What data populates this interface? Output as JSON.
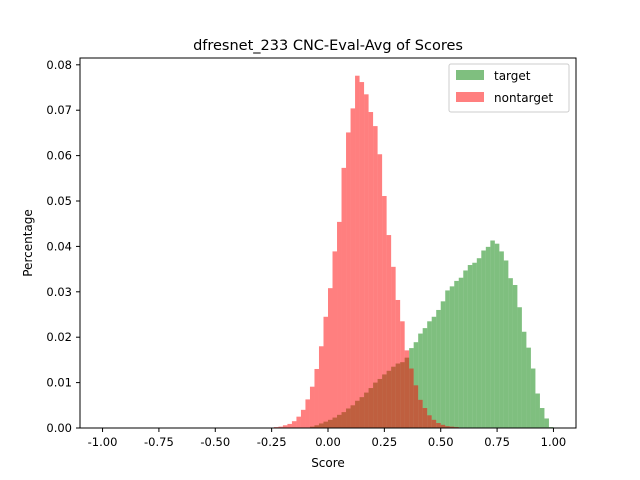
{
  "chart_data": {
    "type": "bar",
    "title": "dfresnet_233 CNC-Eval-Avg of Scores",
    "xlabel": "Score",
    "ylabel": "Percentage",
    "xlim": [
      -1.1,
      1.1
    ],
    "ylim": [
      0,
      0.0815
    ],
    "xticks": [
      "-1.00",
      "-0.75",
      "-0.50",
      "-0.25",
      "0.00",
      "0.25",
      "0.50",
      "0.75",
      "1.00"
    ],
    "xtick_values": [
      -1.0,
      -0.75,
      -0.5,
      -0.25,
      0.0,
      0.25,
      0.5,
      0.75,
      1.0
    ],
    "yticks": [
      "0.00",
      "0.01",
      "0.02",
      "0.03",
      "0.04",
      "0.05",
      "0.06",
      "0.07",
      "0.08"
    ],
    "ytick_values": [
      0.0,
      0.01,
      0.02,
      0.03,
      0.04,
      0.05,
      0.06,
      0.07,
      0.08
    ],
    "legend_position": "top-right",
    "grid": false,
    "bin_width": 0.02,
    "series": [
      {
        "name": "target",
        "color": "#008000",
        "opacity": 0.5,
        "bin_starts": [
          -0.08,
          -0.06,
          -0.04,
          -0.02,
          0.0,
          0.02,
          0.04,
          0.06,
          0.08,
          0.1,
          0.12,
          0.14,
          0.16,
          0.18,
          0.2,
          0.22,
          0.24,
          0.26,
          0.28,
          0.3,
          0.32,
          0.34,
          0.36,
          0.38,
          0.4,
          0.42,
          0.44,
          0.46,
          0.48,
          0.5,
          0.52,
          0.54,
          0.56,
          0.58,
          0.6,
          0.62,
          0.64,
          0.66,
          0.68,
          0.7,
          0.72,
          0.74,
          0.76,
          0.78,
          0.8,
          0.82,
          0.84,
          0.86,
          0.88,
          0.9,
          0.92,
          0.94,
          0.96,
          0.98
        ],
        "values": [
          0.0003,
          0.0006,
          0.001,
          0.0014,
          0.0018,
          0.0023,
          0.0029,
          0.0035,
          0.0043,
          0.005,
          0.006,
          0.0068,
          0.0078,
          0.0088,
          0.01,
          0.0108,
          0.0118,
          0.0126,
          0.0135,
          0.0142,
          0.0145,
          0.0155,
          0.0176,
          0.0189,
          0.0208,
          0.022,
          0.0235,
          0.0245,
          0.026,
          0.0279,
          0.0303,
          0.0312,
          0.0324,
          0.0331,
          0.0347,
          0.0359,
          0.0364,
          0.0374,
          0.0391,
          0.0399,
          0.0413,
          0.0406,
          0.0389,
          0.0369,
          0.033,
          0.0315,
          0.0266,
          0.0212,
          0.0177,
          0.0131,
          0.0076,
          0.0044,
          0.0021,
          0.0002
        ]
      },
      {
        "name": "nontarget",
        "color": "#ff0000",
        "opacity": 0.5,
        "bin_starts": [
          -0.26,
          -0.24,
          -0.22,
          -0.2,
          -0.18,
          -0.16,
          -0.14,
          -0.12,
          -0.1,
          -0.08,
          -0.06,
          -0.04,
          -0.02,
          0.0,
          0.02,
          0.04,
          0.06,
          0.08,
          0.1,
          0.12,
          0.14,
          0.16,
          0.18,
          0.2,
          0.22,
          0.24,
          0.26,
          0.28,
          0.3,
          0.32,
          0.34,
          0.36,
          0.38,
          0.4,
          0.42,
          0.44,
          0.46,
          0.48,
          0.5,
          0.52,
          0.54,
          0.56,
          0.58,
          0.6,
          0.62
        ],
        "values": [
          0.0001,
          0.0002,
          0.0003,
          0.0006,
          0.0009,
          0.0015,
          0.0025,
          0.004,
          0.0063,
          0.0091,
          0.013,
          0.018,
          0.0245,
          0.0308,
          0.0389,
          0.0454,
          0.0573,
          0.0651,
          0.0704,
          0.0776,
          0.0762,
          0.0735,
          0.0696,
          0.0665,
          0.0603,
          0.0511,
          0.0425,
          0.0355,
          0.0282,
          0.0235,
          0.0171,
          0.0131,
          0.0094,
          0.0062,
          0.0044,
          0.0028,
          0.0018,
          0.0011,
          0.0007,
          0.0004,
          0.0003,
          0.0002,
          0.0001,
          0.0001,
          5e-05
        ]
      }
    ]
  }
}
